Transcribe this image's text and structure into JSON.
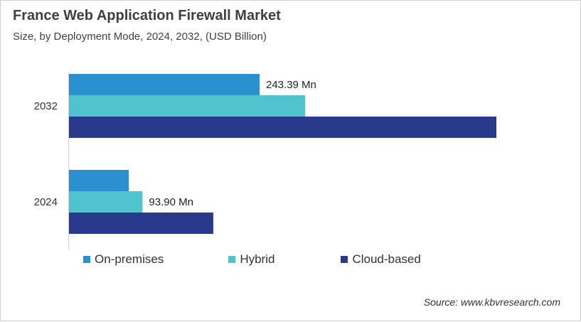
{
  "chart_data": {
    "type": "bar",
    "orientation": "horizontal",
    "title": "France Web Application Firewall Market",
    "subtitle": "Size, by Deployment Mode, 2024, 2032, (USD Billion)",
    "categories": [
      "2032",
      "2024"
    ],
    "series": [
      {
        "name": "On-premises",
        "color": "#2a90d0",
        "values": [
          243.39,
          76.3
        ],
        "labels": [
          "243.39 Mn",
          ""
        ]
      },
      {
        "name": "Hybrid",
        "color": "#4fc3ce",
        "values": [
          301.5,
          93.9
        ],
        "labels": [
          "",
          "93.90 Mn"
        ]
      },
      {
        "name": "Cloud-based",
        "color": "#29398c",
        "values": [
          545.8,
          184.3
        ],
        "labels": [
          "",
          ""
        ]
      }
    ],
    "xlim": [
      0,
      600
    ],
    "grid": false,
    "legend": "bottom"
  },
  "source": "Source: www.kbvresearch.com"
}
